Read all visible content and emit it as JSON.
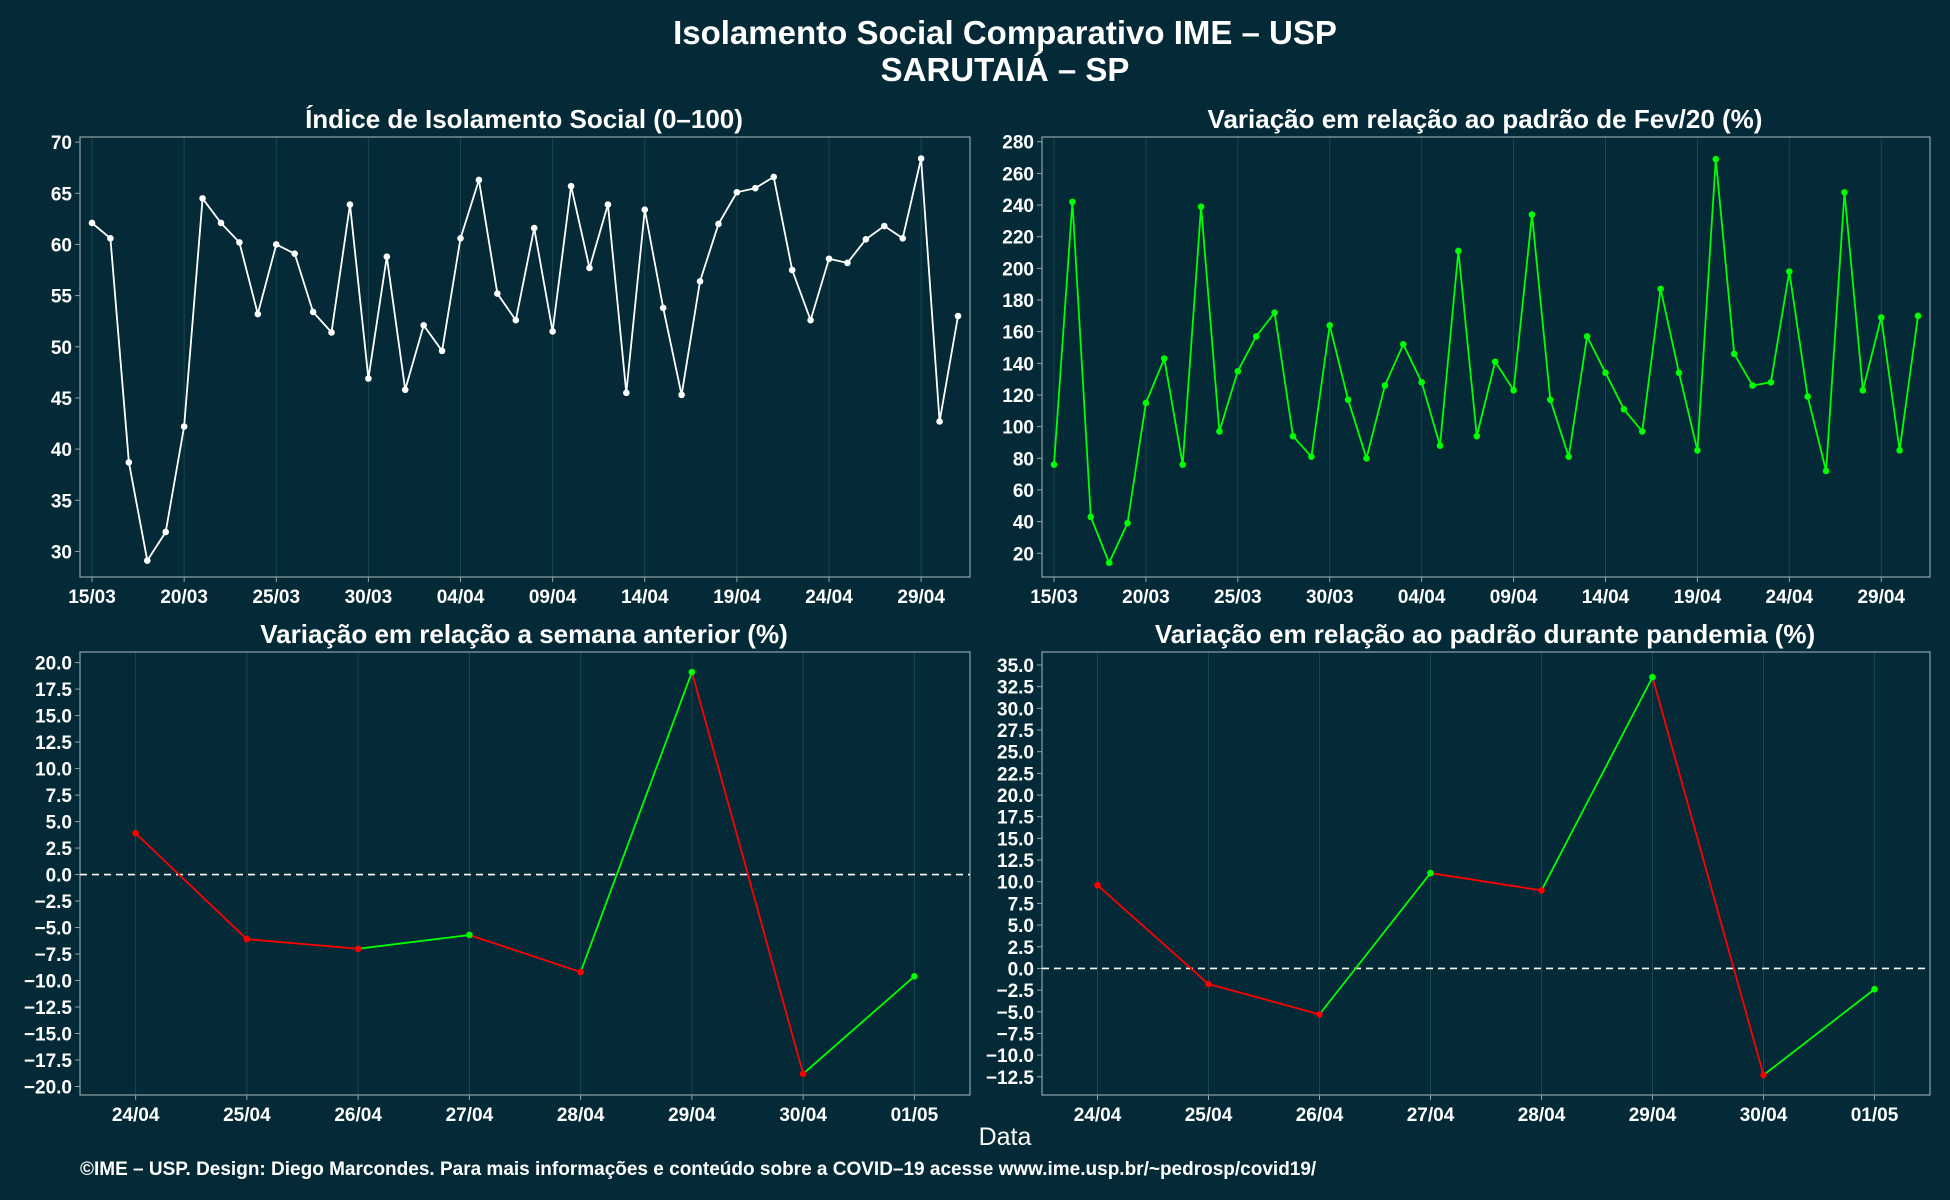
{
  "title": "Isolamento Social Comparativo IME – USP",
  "subtitle": "SARUTAIÁ – SP",
  "xlabel": "Data",
  "footer": "©IME – USP. Design: Diego Marcondes. Para mais informações e conteúdo sobre a COVID–19 acesse www.ime.usp.br/~pedrosp/covid19/",
  "colors": {
    "background": "#032a36",
    "grid": "#1b4650",
    "axis": "#8fa3a8",
    "white_series": "#ffffff",
    "green_series": "#00ff00",
    "red_series": "#ff0000",
    "zero_line": "#ffffff"
  },
  "chart_data": [
    {
      "type": "line",
      "title": "Índice de Isolamento Social (0–100)",
      "color": "white",
      "x_start": "15/03",
      "x_end": "01/05",
      "x_tick_labels": [
        "15/03",
        "20/03",
        "25/03",
        "30/03",
        "04/04",
        "09/04",
        "14/04",
        "19/04",
        "24/04",
        "29/04"
      ],
      "ylim": [
        27.5,
        70.5
      ],
      "y_ticks": [
        "30",
        "35",
        "40",
        "45",
        "50",
        "55",
        "60",
        "65",
        "70"
      ],
      "values": [
        62.1,
        60.6,
        38.7,
        29.1,
        31.9,
        42.2,
        64.5,
        62.1,
        60.2,
        53.2,
        60.0,
        59.1,
        53.4,
        51.4,
        63.9,
        46.9,
        58.8,
        45.8,
        52.1,
        49.6,
        60.6,
        66.3,
        55.2,
        52.6,
        61.6,
        51.5,
        65.7,
        57.7,
        63.9,
        45.5,
        63.4,
        53.8,
        45.3,
        56.4,
        62.0,
        65.1,
        65.5,
        66.6,
        57.5,
        52.6,
        58.6,
        58.2,
        60.5,
        61.8,
        60.6,
        68.4,
        42.7,
        53.0
      ]
    },
    {
      "type": "line",
      "title": "Variação em relação ao padrão de Fev/20 (%)",
      "color": "green",
      "x_start": "15/03",
      "x_end": "01/05",
      "x_tick_labels": [
        "15/03",
        "20/03",
        "25/03",
        "30/03",
        "04/04",
        "09/04",
        "14/04",
        "19/04",
        "24/04",
        "29/04"
      ],
      "ylim": [
        5,
        283
      ],
      "y_ticks": [
        "20",
        "40",
        "60",
        "80",
        "100",
        "120",
        "140",
        "160",
        "180",
        "200",
        "220",
        "240",
        "260",
        "280"
      ],
      "values": [
        76,
        242,
        43,
        14,
        39,
        115,
        143,
        76,
        239,
        97,
        135,
        157,
        172,
        94,
        81,
        164,
        117,
        80,
        126,
        152,
        128,
        88,
        211,
        94,
        141,
        123,
        234,
        117,
        81,
        157,
        134,
        111,
        97,
        187,
        134,
        85,
        269,
        146,
        126,
        128,
        198,
        119,
        72,
        248,
        123,
        169,
        85,
        170
      ]
    },
    {
      "type": "line",
      "title": "Variação em relação a semana anterior (%)",
      "categories": [
        "24/04",
        "25/04",
        "26/04",
        "27/04",
        "28/04",
        "29/04",
        "30/04",
        "01/05"
      ],
      "ylim": [
        -20.8,
        21.0
      ],
      "y_ticks": [
        "20.0",
        "17.5",
        "15.0",
        "12.5",
        "10.0",
        "7.5",
        "5.0",
        "2.5",
        "0.0",
        "−2.5",
        "−5.0",
        "−7.5",
        "−10.0",
        "−12.5",
        "−15.0",
        "−17.5",
        "−20.0"
      ],
      "values": [
        3.9,
        -6.1,
        -7.0,
        -5.7,
        -9.2,
        19.1,
        -18.8,
        -9.6
      ],
      "reference_line": 0
    },
    {
      "type": "line",
      "title": "Variação em relação ao padrão durante pandemia (%)",
      "categories": [
        "24/04",
        "25/04",
        "26/04",
        "27/04",
        "28/04",
        "29/04",
        "30/04",
        "01/05"
      ],
      "ylim": [
        -14.6,
        36.5
      ],
      "y_ticks": [
        "35.0",
        "32.5",
        "30.0",
        "27.5",
        "25.0",
        "22.5",
        "20.0",
        "17.5",
        "15.0",
        "12.5",
        "10.0",
        "7.5",
        "5.0",
        "2.5",
        "0.0",
        "−2.5",
        "−5.0",
        "−7.5",
        "−10.0",
        "−12.5"
      ],
      "values": [
        9.6,
        -1.8,
        -5.3,
        11.0,
        9.0,
        33.6,
        -12.3,
        -2.4
      ],
      "reference_line": 0
    }
  ]
}
